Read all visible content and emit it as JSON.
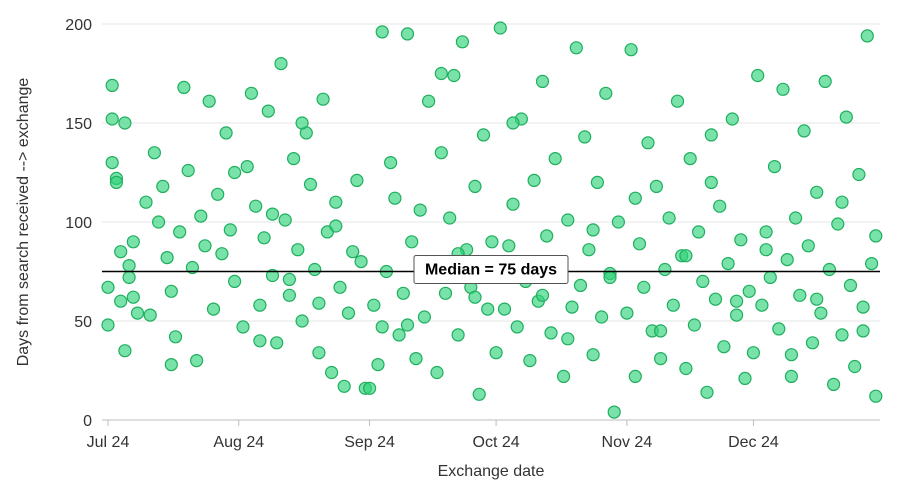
{
  "chart_data": {
    "type": "scatter",
    "title": "",
    "xlabel": "Exchange date",
    "ylabel": "Days from search received --> exchange",
    "x_ticks": [
      "Jul 24",
      "Aug 24",
      "Sep 24",
      "Oct 24",
      "Nov 24",
      "Dec 24"
    ],
    "xlim": [
      "2024-07-01",
      "2024-12-31"
    ],
    "y_ticks": [
      "0",
      "50",
      "100",
      "150",
      "200"
    ],
    "ylim": [
      0,
      200
    ],
    "grid": "horizontal",
    "median": {
      "value": 75,
      "label": "Median = 75 days"
    },
    "series": [
      {
        "color": "#2fd27a",
        "x": [
          "2024-07-01",
          "2024-07-01",
          "2024-07-02",
          "2024-07-02",
          "2024-07-03",
          "2024-07-04",
          "2024-07-05",
          "2024-07-06",
          "2024-07-07",
          "2024-07-08",
          "2024-07-02",
          "2024-07-03",
          "2024-07-05",
          "2024-07-06",
          "2024-07-04",
          "2024-07-07",
          "2024-07-10",
          "2024-07-11",
          "2024-07-12",
          "2024-07-13",
          "2024-07-14",
          "2024-07-15",
          "2024-07-16",
          "2024-07-16",
          "2024-07-17",
          "2024-07-18",
          "2024-07-19",
          "2024-07-20",
          "2024-07-21",
          "2024-07-22",
          "2024-07-23",
          "2024-07-24",
          "2024-07-25",
          "2024-07-26",
          "2024-07-27",
          "2024-07-28",
          "2024-07-29",
          "2024-07-30",
          "2024-07-31",
          "2024-07-31",
          "2024-08-02",
          "2024-08-03",
          "2024-08-04",
          "2024-08-05",
          "2024-08-06",
          "2024-08-07",
          "2024-08-08",
          "2024-08-09",
          "2024-08-10",
          "2024-08-11",
          "2024-08-12",
          "2024-08-13",
          "2024-08-14",
          "2024-08-15",
          "2024-08-16",
          "2024-08-17",
          "2024-08-18",
          "2024-08-19",
          "2024-08-20",
          "2024-08-21",
          "2024-08-22",
          "2024-08-23",
          "2024-08-24",
          "2024-08-25",
          "2024-08-26",
          "2024-08-27",
          "2024-08-28",
          "2024-08-29",
          "2024-08-30",
          "2024-08-31",
          "2024-08-06",
          "2024-08-09",
          "2024-08-13",
          "2024-08-16",
          "2024-08-20",
          "2024-08-24",
          "2024-09-01",
          "2024-09-02",
          "2024-09-03",
          "2024-09-04",
          "2024-09-05",
          "2024-09-06",
          "2024-09-07",
          "2024-09-08",
          "2024-09-09",
          "2024-09-10",
          "2024-09-11",
          "2024-09-12",
          "2024-09-13",
          "2024-09-14",
          "2024-09-15",
          "2024-09-16",
          "2024-09-17",
          "2024-09-18",
          "2024-09-19",
          "2024-09-20",
          "2024-09-21",
          "2024-09-22",
          "2024-09-23",
          "2024-09-24",
          "2024-09-25",
          "2024-09-26",
          "2024-09-27",
          "2024-09-28",
          "2024-09-29",
          "2024-09-30",
          "2024-09-04",
          "2024-09-10",
          "2024-09-18",
          "2024-09-22",
          "2024-09-26",
          "2024-10-01",
          "2024-10-02",
          "2024-10-03",
          "2024-10-04",
          "2024-10-05",
          "2024-10-06",
          "2024-10-07",
          "2024-10-08",
          "2024-10-09",
          "2024-10-10",
          "2024-10-11",
          "2024-10-12",
          "2024-10-13",
          "2024-10-14",
          "2024-10-15",
          "2024-10-16",
          "2024-10-17",
          "2024-10-18",
          "2024-10-19",
          "2024-10-20",
          "2024-10-21",
          "2024-10-22",
          "2024-10-23",
          "2024-10-24",
          "2024-10-25",
          "2024-10-26",
          "2024-10-27",
          "2024-10-28",
          "2024-10-29",
          "2024-10-30",
          "2024-10-05",
          "2024-10-12",
          "2024-10-18",
          "2024-10-24",
          "2024-10-28",
          "2024-11-01",
          "2024-11-02",
          "2024-11-03",
          "2024-11-04",
          "2024-11-05",
          "2024-11-06",
          "2024-11-07",
          "2024-11-08",
          "2024-11-09",
          "2024-11-10",
          "2024-11-11",
          "2024-11-12",
          "2024-11-13",
          "2024-11-14",
          "2024-11-15",
          "2024-11-16",
          "2024-11-17",
          "2024-11-18",
          "2024-11-19",
          "2024-11-20",
          "2024-11-21",
          "2024-11-22",
          "2024-11-23",
          "2024-11-24",
          "2024-11-25",
          "2024-11-26",
          "2024-11-27",
          "2024-11-28",
          "2024-11-29",
          "2024-11-30",
          "2024-11-03",
          "2024-11-09",
          "2024-11-15",
          "2024-11-21",
          "2024-11-27",
          "2024-12-01",
          "2024-12-02",
          "2024-12-03",
          "2024-12-04",
          "2024-12-05",
          "2024-12-06",
          "2024-12-07",
          "2024-12-08",
          "2024-12-09",
          "2024-12-10",
          "2024-12-11",
          "2024-12-12",
          "2024-12-13",
          "2024-12-14",
          "2024-12-15",
          "2024-12-16",
          "2024-12-17",
          "2024-12-18",
          "2024-12-19",
          "2024-12-20",
          "2024-12-21",
          "2024-12-22",
          "2024-12-23",
          "2024-12-24",
          "2024-12-25",
          "2024-12-26",
          "2024-12-27",
          "2024-12-28",
          "2024-12-29",
          "2024-12-30",
          "2024-12-04",
          "2024-12-10",
          "2024-12-16",
          "2024-12-22",
          "2024-12-27",
          "2024-12-30"
        ],
        "y": [
          48,
          67,
          152,
          130,
          122,
          85,
          35,
          78,
          62,
          54,
          169,
          120,
          150,
          72,
          60,
          90,
          110,
          53,
          135,
          100,
          118,
          82,
          65,
          28,
          42,
          95,
          168,
          126,
          77,
          30,
          103,
          88,
          161,
          56,
          114,
          84,
          145,
          96,
          70,
          125,
          47,
          128,
          165,
          108,
          58,
          92,
          156,
          73,
          39,
          180,
          101,
          63,
          132,
          86,
          50,
          145,
          119,
          76,
          34,
          162,
          95,
          24,
          110,
          67,
          17,
          54,
          85,
          121,
          80,
          16,
          40,
          104,
          71,
          150,
          59,
          98,
          16,
          58,
          28,
          47,
          75,
          130,
          112,
          43,
          64,
          195,
          90,
          31,
          106,
          52,
          161,
          78,
          24,
          135,
          64,
          102,
          174,
          43,
          191,
          86,
          67,
          118,
          13,
          144,
          56,
          90,
          196,
          48,
          175,
          84,
          62,
          34,
          198,
          56,
          88,
          109,
          47,
          152,
          70,
          30,
          121,
          60,
          171,
          93,
          44,
          132,
          78,
          22,
          101,
          57,
          188,
          68,
          143,
          86,
          33,
          120,
          52,
          165,
          74,
          4,
          100,
          150,
          63,
          41,
          96,
          72,
          54,
          187,
          22,
          89,
          67,
          140,
          45,
          118,
          31,
          76,
          102,
          58,
          161,
          83,
          26,
          132,
          48,
          95,
          70,
          14,
          144,
          61,
          108,
          37,
          79,
          152,
          53,
          91,
          21,
          65,
          112,
          45,
          83,
          120,
          60,
          34,
          174,
          58,
          95,
          72,
          128,
          46,
          167,
          81,
          22,
          102,
          63,
          146,
          88,
          39,
          115,
          54,
          171,
          76,
          18,
          99,
          43,
          153,
          68,
          27,
          124,
          57,
          194,
          79,
          12,
          86,
          33,
          61,
          110,
          45,
          93
        ]
      }
    ]
  }
}
